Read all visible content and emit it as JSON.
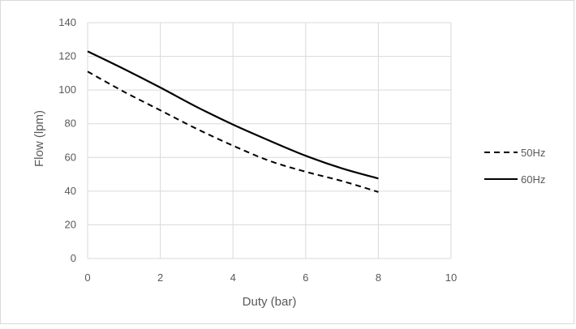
{
  "chart_data": {
    "type": "line",
    "title": "",
    "xlabel": "Duty (bar)",
    "ylabel": "Flow (lpm)",
    "xlim": [
      0,
      10
    ],
    "ylim": [
      0,
      140
    ],
    "xticks": [
      0,
      2,
      4,
      6,
      8,
      10
    ],
    "yticks": [
      0,
      20,
      40,
      60,
      80,
      100,
      120,
      140
    ],
    "grid": true,
    "legend_position": "right",
    "series": [
      {
        "name": "50Hz",
        "style": "dashed",
        "color": "#000000",
        "x": [
          0,
          1,
          2,
          3,
          4,
          5,
          6,
          7,
          8
        ],
        "y": [
          111,
          99,
          88,
          77,
          67,
          58,
          51.5,
          46,
          39.5
        ]
      },
      {
        "name": "60Hz",
        "style": "solid",
        "color": "#000000",
        "x": [
          0,
          1,
          2,
          3,
          4,
          5,
          6,
          7,
          8
        ],
        "y": [
          123,
          112.5,
          101.5,
          90,
          79.5,
          70,
          61,
          53.5,
          47.5
        ]
      }
    ]
  },
  "colors": {
    "gridline": "#d9d9d9",
    "text": "#595959",
    "series": "#000000"
  }
}
